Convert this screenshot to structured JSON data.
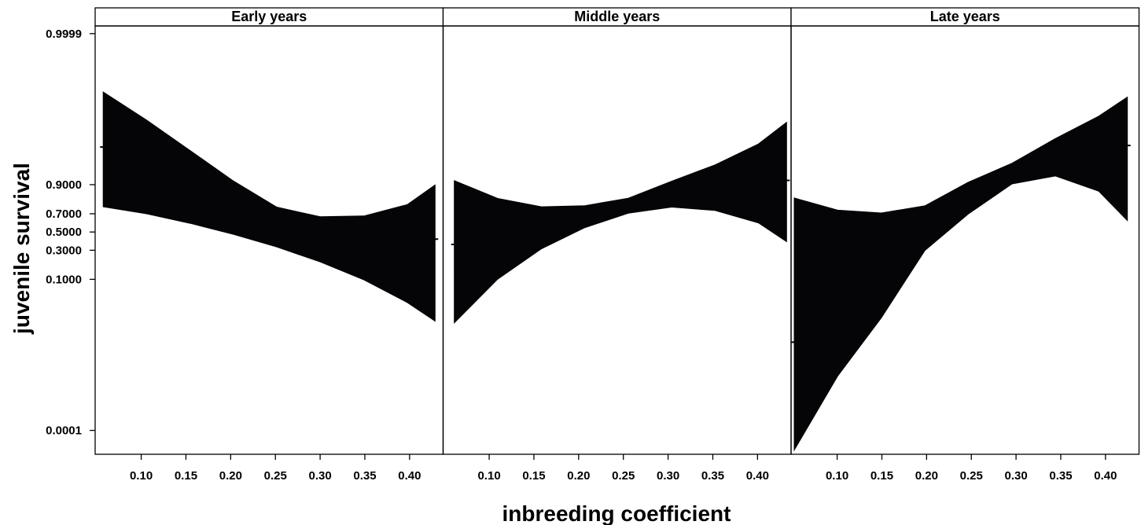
{
  "chart_data": {
    "type": "area",
    "xlabel": "inbreeding coefficient",
    "ylabel": "juvenile survival",
    "y_scale": "logit",
    "y_ticks": [
      {
        "value": 0.0001,
        "label": "0.0001"
      },
      {
        "value": 0.1,
        "label": "0.1000"
      },
      {
        "value": 0.3,
        "label": "0.3000"
      },
      {
        "value": 0.5,
        "label": "0.5000"
      },
      {
        "value": 0.7,
        "label": "0.7000"
      },
      {
        "value": 0.9,
        "label": "0.9000"
      },
      {
        "value": 0.9999,
        "label": "0.9999"
      }
    ],
    "x_ticks": [
      {
        "value": 0.1,
        "label": "0.10"
      },
      {
        "value": 0.15,
        "label": "0.15"
      },
      {
        "value": 0.2,
        "label": "0.20"
      },
      {
        "value": 0.25,
        "label": "0.25"
      },
      {
        "value": 0.3,
        "label": "0.30"
      },
      {
        "value": 0.35,
        "label": "0.35"
      },
      {
        "value": 0.4,
        "label": "0.40"
      }
    ],
    "xlim": [
      0.0485,
      0.4375
    ],
    "ylim": [
      3.3e-05,
      0.99993
    ],
    "fill_color": "#050508",
    "panels": [
      {
        "strip": "Early years",
        "x": [
          0.0575,
          0.106,
          0.155,
          0.2035,
          0.2515,
          0.3,
          0.349,
          0.3975,
          0.4285
        ],
        "upper": [
          0.9985,
          0.9945,
          0.9775,
          0.9135,
          0.7605,
          0.67,
          0.678,
          0.781,
          0.8985
        ],
        "lower": [
          0.7635,
          0.6995,
          0.599,
          0.472,
          0.333,
          0.1999,
          0.0977,
          0.0365,
          0.0157
        ],
        "edge_markers": [
          {
            "x": 0.0575,
            "y": 0.981
          },
          {
            "x": 0.4285,
            "y": 0.418
          }
        ]
      },
      {
        "strip": "Middle years",
        "x": [
          0.061,
          0.1095,
          0.1585,
          0.207,
          0.2555,
          0.304,
          0.3525,
          0.401,
          0.4325
        ],
        "upper": [
          0.9155,
          0.826,
          0.7635,
          0.7725,
          0.8275,
          0.9135,
          0.9575,
          0.9835,
          0.9939
        ],
        "lower": [
          0.0145,
          0.1006,
          0.3145,
          0.551,
          0.7055,
          0.7605,
          0.731,
          0.6045,
          0.3902
        ],
        "edge_markers": [
          {
            "x": 0.061,
            "y": 0.3595
          },
          {
            "x": 0.4325,
            "y": 0.9166
          }
        ]
      },
      {
        "strip": "Late years",
        "x": [
          0.052,
          0.1005,
          0.1495,
          0.198,
          0.2465,
          0.2955,
          0.344,
          0.3925,
          0.4245
        ],
        "upper": [
          0.829,
          0.7335,
          0.7075,
          0.771,
          0.9094,
          0.9606,
          0.9871,
          0.9954,
          0.9981
        ],
        "lower": [
          4e-05,
          0.00124,
          0.01839,
          0.2967,
          0.6965,
          0.9032,
          0.9309,
          0.8693,
          0.6291
        ],
        "edge_markers": [
          {
            "x": 0.052,
            "y": 0.00597
          },
          {
            "x": 0.4245,
            "y": 0.9823
          }
        ]
      }
    ]
  }
}
